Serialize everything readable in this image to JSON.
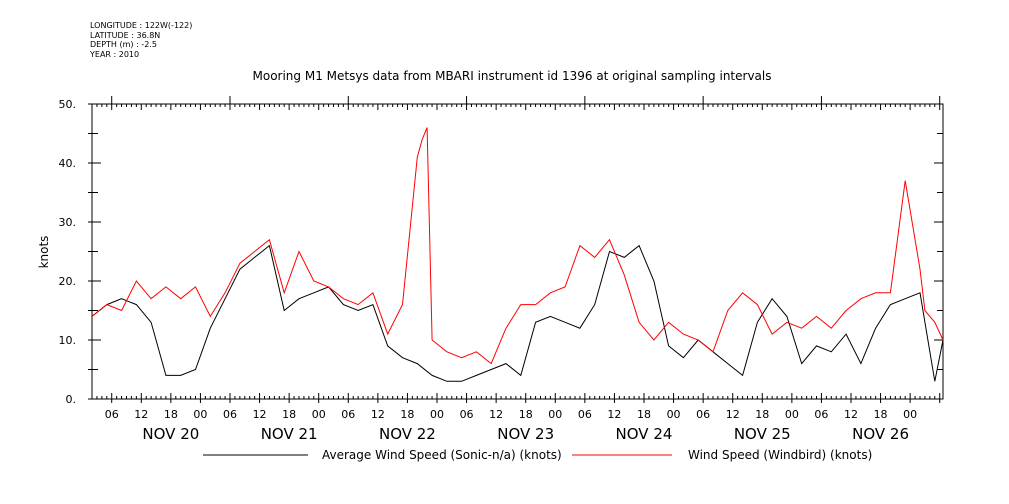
{
  "metadata": {
    "longitude": "LONGITUDE : 122W(-122)",
    "latitude": "LATITUDE : 36.8N",
    "depth": "DEPTH (m) : -2.5",
    "year": "YEAR : 2010"
  },
  "chart_data": {
    "type": "line",
    "title": "Mooring M1 Metsys data from MBARI instrument id 1396 at original sampling intervals",
    "ylabel": "knots",
    "ylim": [
      0,
      50
    ],
    "yticks": [
      "0.",
      "10.",
      "20.",
      "30.",
      "40.",
      "50."
    ],
    "xlim": [
      "2010-11-19T20:00",
      "2010-11-27T00:40"
    ],
    "hour_ticks": [
      "06",
      "12",
      "18",
      "00",
      "06",
      "12",
      "18",
      "00",
      "06",
      "12",
      "18",
      "00",
      "06",
      "12",
      "18",
      "00",
      "06",
      "12",
      "18",
      "00",
      "06",
      "12",
      "18",
      "00",
      "06",
      "12",
      "18",
      "00"
    ],
    "day_labels": [
      "NOV 20",
      "NOV 21",
      "NOV 22",
      "NOV 23",
      "NOV 24",
      "NOV 25",
      "NOV 26"
    ],
    "legend_placement": "bottom",
    "colors": {
      "sonic": "#000000",
      "windbird": "#ff0000"
    },
    "series": [
      {
        "name": "Average Wind Speed (Sonic-n/a) (knots)",
        "x": [
          "2010-11-19T20:00",
          "2010-11-19T23:00",
          "2010-11-20T02:00",
          "2010-11-20T05:00",
          "2010-11-20T08:00",
          "2010-11-20T11:00",
          "2010-11-20T14:00",
          "2010-11-20T17:00",
          "2010-11-20T20:00",
          "2010-11-20T23:00",
          "2010-11-21T02:00",
          "2010-11-21T05:00",
          "2010-11-21T08:00",
          "2010-11-21T11:00",
          "2010-11-21T14:00",
          "2010-11-21T17:00",
          "2010-11-21T20:00",
          "2010-11-21T23:00",
          "2010-11-22T02:00",
          "2010-11-22T05:00",
          "2010-11-22T08:00",
          "2010-11-22T11:00",
          "2010-11-22T14:00",
          "2010-11-22T17:00",
          "2010-11-22T20:00",
          "2010-11-22T23:00",
          "2010-11-23T02:00",
          "2010-11-23T05:00",
          "2010-11-23T08:00",
          "2010-11-23T11:00",
          "2010-11-23T14:00",
          "2010-11-23T17:00",
          "2010-11-23T20:00",
          "2010-11-23T23:00",
          "2010-11-24T02:00",
          "2010-11-24T05:00",
          "2010-11-24T08:00",
          "2010-11-24T11:00",
          "2010-11-24T14:00",
          "2010-11-24T17:00",
          "2010-11-24T20:00",
          "2010-11-24T23:00",
          "2010-11-25T02:00",
          "2010-11-25T05:00",
          "2010-11-25T08:00",
          "2010-11-25T11:00",
          "2010-11-25T14:00",
          "2010-11-25T17:00",
          "2010-11-25T20:00",
          "2010-11-25T23:00",
          "2010-11-26T02:00",
          "2010-11-26T05:00",
          "2010-11-26T08:00",
          "2010-11-26T11:00",
          "2010-11-26T14:00",
          "2010-11-26T17:00",
          "2010-11-26T20:00",
          "2010-11-26T23:00",
          "2010-11-27T00:40"
        ],
        "values": [
          14,
          16,
          17,
          16,
          13,
          4,
          4,
          5,
          12,
          17,
          22,
          24,
          26,
          15,
          17,
          18,
          19,
          16,
          15,
          16,
          9,
          7,
          6,
          4,
          3,
          3,
          4,
          5,
          6,
          4,
          13,
          14,
          13,
          12,
          16,
          25,
          24,
          26,
          20,
          9,
          7,
          10,
          8,
          6,
          4,
          13,
          17,
          14,
          6,
          9,
          8,
          11,
          6,
          12,
          16,
          17,
          18,
          3,
          10
        ]
      },
      {
        "name": "Wind Speed (Windbird) (knots)",
        "x": [
          "2010-11-19T20:00",
          "2010-11-19T23:00",
          "2010-11-20T02:00",
          "2010-11-20T05:00",
          "2010-11-20T08:00",
          "2010-11-20T11:00",
          "2010-11-20T14:00",
          "2010-11-20T17:00",
          "2010-11-20T20:00",
          "2010-11-20T23:00",
          "2010-11-21T02:00",
          "2010-11-21T05:00",
          "2010-11-21T08:00",
          "2010-11-21T11:00",
          "2010-11-21T14:00",
          "2010-11-21T17:00",
          "2010-11-21T20:00",
          "2010-11-21T23:00",
          "2010-11-22T02:00",
          "2010-11-22T05:00",
          "2010-11-22T08:00",
          "2010-11-22T11:00",
          "2010-11-22T14:00",
          "2010-11-22T15:00",
          "2010-11-22T16:00",
          "2010-11-22T17:00",
          "2010-11-22T20:00",
          "2010-11-22T23:00",
          "2010-11-23T02:00",
          "2010-11-23T05:00",
          "2010-11-23T08:00",
          "2010-11-23T11:00",
          "2010-11-23T14:00",
          "2010-11-23T17:00",
          "2010-11-23T20:00",
          "2010-11-23T23:00",
          "2010-11-24T02:00",
          "2010-11-24T05:00",
          "2010-11-24T08:00",
          "2010-11-24T11:00",
          "2010-11-24T14:00",
          "2010-11-24T17:00",
          "2010-11-24T20:00",
          "2010-11-24T23:00",
          "2010-11-25T02:00",
          "2010-11-25T05:00",
          "2010-11-25T08:00",
          "2010-11-25T11:00",
          "2010-11-25T14:00",
          "2010-11-25T17:00",
          "2010-11-25T20:00",
          "2010-11-25T23:00",
          "2010-11-26T02:00",
          "2010-11-26T05:00",
          "2010-11-26T08:00",
          "2010-11-26T11:00",
          "2010-11-26T14:00",
          "2010-11-26T17:00",
          "2010-11-26T20:00",
          "2010-11-26T21:00",
          "2010-11-26T23:00",
          "2010-11-27T00:40"
        ],
        "values": [
          14,
          16,
          15,
          20,
          17,
          19,
          17,
          19,
          14,
          18,
          23,
          25,
          27,
          18,
          25,
          20,
          19,
          17,
          16,
          18,
          11,
          16,
          41,
          44,
          46,
          10,
          8,
          7,
          8,
          6,
          12,
          16,
          16,
          18,
          19,
          26,
          24,
          27,
          21,
          13,
          10,
          13,
          11,
          10,
          8,
          15,
          18,
          16,
          11,
          13,
          12,
          14,
          12,
          15,
          17,
          18,
          18,
          37,
          22,
          15,
          13,
          10
        ]
      }
    ]
  }
}
